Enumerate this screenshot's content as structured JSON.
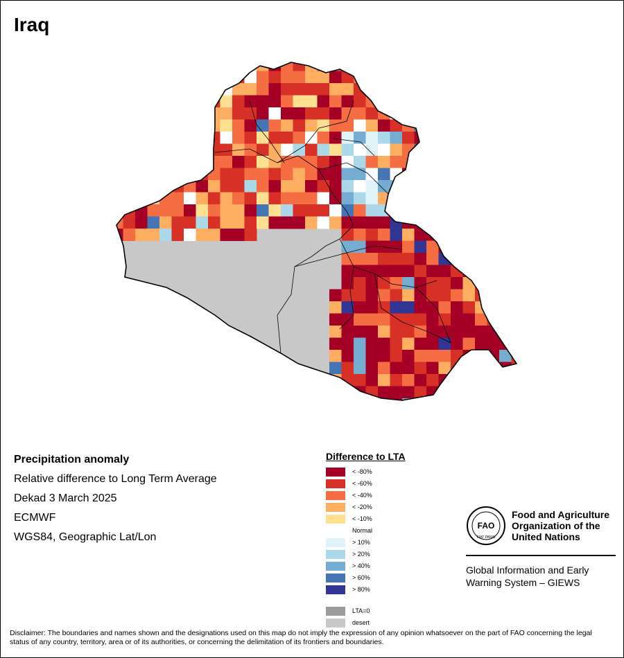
{
  "title": "Iraq",
  "info": {
    "heading": "Precipitation anomaly",
    "lines": [
      "Relative difference to Long Term Average",
      "Dekad 3 March 2025",
      "ECMWF",
      "WGS84, Geographic Lat/Lon"
    ]
  },
  "legend": {
    "title": "Difference to LTA",
    "items": [
      {
        "label": "< -80%",
        "color": "#a50026"
      },
      {
        "label": "< -60%",
        "color": "#d73027"
      },
      {
        "label": "< -40%",
        "color": "#f46d43"
      },
      {
        "label": "< -20%",
        "color": "#fdae61"
      },
      {
        "label": "< -10%",
        "color": "#fee090"
      },
      {
        "label": "Normal",
        "color": "#ffffff"
      },
      {
        "label": "> 10%",
        "color": "#e0f3f8"
      },
      {
        "label": "> 20%",
        "color": "#abd9e9"
      },
      {
        "label": "> 40%",
        "color": "#74add1"
      },
      {
        "label": "> 60%",
        "color": "#4575b4"
      },
      {
        "label": "> 80%",
        "color": "#313695"
      },
      {
        "label": "LTA=0",
        "color": "#9b9b9b"
      },
      {
        "label": "desert",
        "color": "#c8c8c8"
      }
    ]
  },
  "organization": {
    "name_lines": [
      "Food and Agriculture",
      "Organization of the",
      "United Nations"
    ],
    "logo_letters": "FAO",
    "logo_motto": "FIAT PANIS",
    "system_lines": [
      "Global Information and Early",
      "Warning System – GIEWS"
    ]
  },
  "disclaimer": "Disclaimer: The boundaries and names shown and the designations used on this map do not imply the expression of any opinion whatsoever on the part of FAO concerning the legal status of any country, territory, area or of its authorities, or concerning the delimitation of its frontiers and boundaries."
}
